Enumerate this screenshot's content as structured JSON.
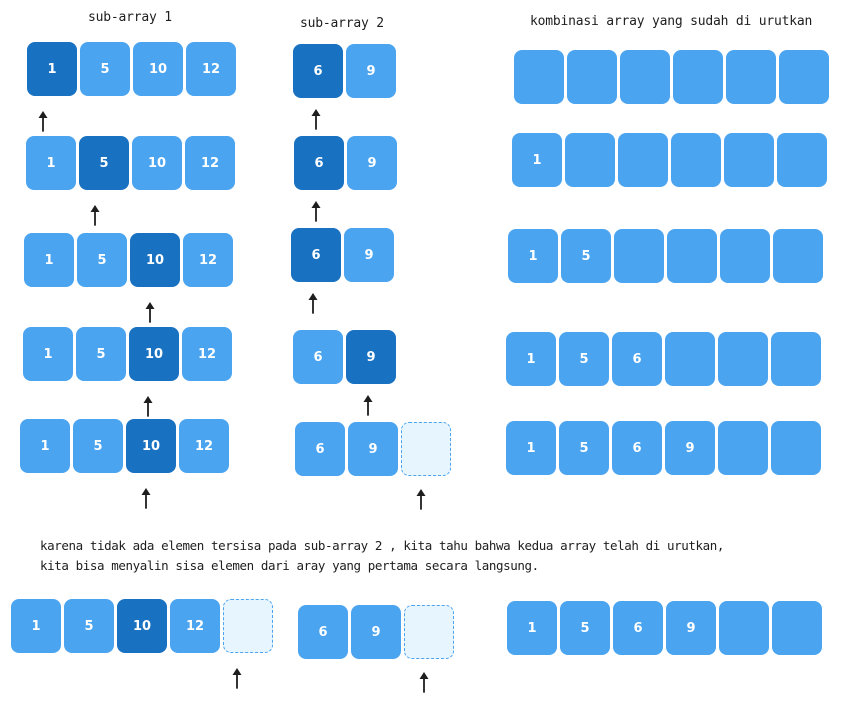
{
  "titles": {
    "sub1": "sub-array 1",
    "sub2": "sub-array 2",
    "merged": "kombinasi array yang sudah di urutkan"
  },
  "rows": [
    {
      "sub1": [
        {
          "v": "1",
          "a": true
        },
        {
          "v": "5"
        },
        {
          "v": "10"
        },
        {
          "v": "12"
        }
      ],
      "sub2": [
        {
          "v": "6",
          "a": true
        },
        {
          "v": "9"
        }
      ],
      "merged": [
        "",
        "",
        "",
        "",
        "",
        ""
      ]
    },
    {
      "sub1": [
        {
          "v": "1"
        },
        {
          "v": "5",
          "a": true
        },
        {
          "v": "10"
        },
        {
          "v": "12"
        }
      ],
      "sub2": [
        {
          "v": "6",
          "a": true
        },
        {
          "v": "9"
        }
      ],
      "merged": [
        "1",
        "",
        "",
        "",
        "",
        ""
      ]
    },
    {
      "sub1": [
        {
          "v": "1"
        },
        {
          "v": "5"
        },
        {
          "v": "10",
          "a": true
        },
        {
          "v": "12"
        }
      ],
      "sub2": [
        {
          "v": "6",
          "a": true
        },
        {
          "v": "9"
        }
      ],
      "merged": [
        "1",
        "5",
        "",
        "",
        "",
        ""
      ]
    },
    {
      "sub1": [
        {
          "v": "1"
        },
        {
          "v": "5"
        },
        {
          "v": "10",
          "a": true
        },
        {
          "v": "12"
        }
      ],
      "sub2": [
        {
          "v": "6"
        },
        {
          "v": "9",
          "a": true
        }
      ],
      "merged": [
        "1",
        "5",
        "6",
        "",
        "",
        ""
      ]
    },
    {
      "sub1": [
        {
          "v": "1"
        },
        {
          "v": "5"
        },
        {
          "v": "10",
          "a": true
        },
        {
          "v": "12"
        }
      ],
      "sub2": [
        {
          "v": "6"
        },
        {
          "v": "9"
        },
        {
          "v": "",
          "e": true
        }
      ],
      "merged": [
        "1",
        "5",
        "6",
        "9",
        "",
        ""
      ]
    }
  ],
  "note": {
    "line1": "karena tidak ada elemen tersisa pada sub-array 2 ,  kita tahu bahwa kedua array telah di urutkan,",
    "line2": "kita bisa menyalin sisa elemen dari aray yang pertama secara langsung."
  },
  "final": {
    "sub1": [
      {
        "v": "1"
      },
      {
        "v": "5"
      },
      {
        "v": "10",
        "a": true
      },
      {
        "v": "12"
      },
      {
        "v": "",
        "e": true
      }
    ],
    "sub2": [
      {
        "v": "6"
      },
      {
        "v": "9"
      },
      {
        "v": "",
        "e": true
      }
    ],
    "merged": [
      "1",
      "5",
      "6",
      "9",
      "",
      ""
    ]
  },
  "colors": {
    "cell": "#4ba4f0",
    "active": "#1971c2",
    "empty_fill": "#e7f5ff",
    "text": "#1e1e1e"
  }
}
